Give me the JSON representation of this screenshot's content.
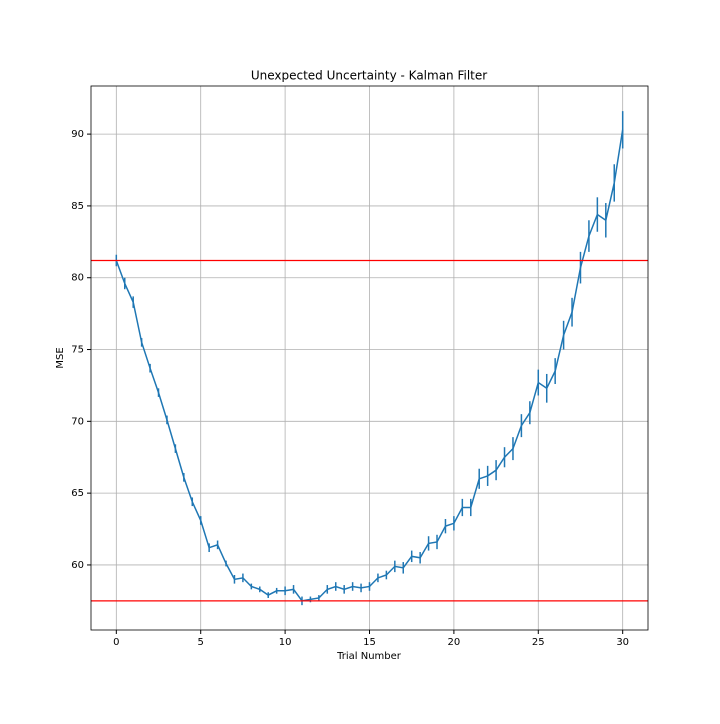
{
  "chart_data": {
    "type": "errorbar-line",
    "title": "Unexpected Uncertainty - Kalman Filter",
    "xlabel": "Trial Number",
    "ylabel": "MSE",
    "series": [
      {
        "color": "#1f77b4",
        "x": [
          0,
          0.5,
          1,
          1.5,
          2,
          2.5,
          3,
          3.5,
          4,
          4.5,
          5,
          5.5,
          6,
          6.5,
          7,
          7.5,
          8,
          8.5,
          9,
          9.5,
          10,
          10.5,
          11,
          11.5,
          12,
          12.5,
          13,
          13.5,
          14,
          14.5,
          15,
          15.5,
          16,
          16.5,
          17,
          17.5,
          18,
          18.5,
          19,
          19.5,
          20,
          20.5,
          21,
          21.5,
          22,
          22.5,
          23,
          23.5,
          24,
          24.5,
          25,
          25.5,
          26,
          26.5,
          27,
          27.5,
          28,
          28.5,
          29,
          29.5,
          30
        ],
        "values": [
          81.2,
          79.6,
          78.3,
          75.5,
          73.7,
          72.0,
          70.1,
          68.1,
          66.1,
          64.4,
          63.1,
          61.2,
          61.4,
          60.1,
          59.0,
          59.1,
          58.5,
          58.3,
          57.9,
          58.2,
          58.2,
          58.3,
          57.5,
          57.6,
          57.7,
          58.3,
          58.5,
          58.3,
          58.5,
          58.4,
          58.5,
          59.1,
          59.3,
          59.9,
          59.8,
          60.6,
          60.5,
          61.5,
          61.6,
          62.7,
          62.9,
          64.0,
          64.0,
          66.0,
          66.2,
          66.6,
          67.5,
          68.1,
          69.7,
          70.6,
          72.7,
          72.3,
          73.5,
          76.0,
          77.6,
          80.7,
          82.9,
          84.4,
          84.0,
          86.6,
          90.3
        ],
        "errors": [
          0.4,
          0.4,
          0.4,
          0.3,
          0.3,
          0.3,
          0.3,
          0.3,
          0.3,
          0.3,
          0.3,
          0.3,
          0.3,
          0.2,
          0.3,
          0.3,
          0.2,
          0.2,
          0.2,
          0.2,
          0.3,
          0.3,
          0.3,
          0.2,
          0.2,
          0.3,
          0.3,
          0.3,
          0.3,
          0.3,
          0.3,
          0.3,
          0.3,
          0.4,
          0.4,
          0.4,
          0.4,
          0.5,
          0.5,
          0.5,
          0.5,
          0.6,
          0.6,
          0.7,
          0.7,
          0.7,
          0.7,
          0.8,
          0.8,
          0.8,
          0.9,
          1.0,
          0.9,
          1.0,
          1.0,
          1.1,
          1.1,
          1.2,
          1.2,
          1.3,
          1.3
        ]
      }
    ],
    "hlines": [
      {
        "y": 81.2,
        "color": "#ff0000"
      },
      {
        "y": 57.5,
        "color": "#ff0000"
      }
    ],
    "xlim": [
      -1.5,
      31.5
    ],
    "ylim": [
      55.47,
      93.35
    ],
    "xticks": [
      0,
      5,
      10,
      15,
      20,
      25,
      30
    ],
    "yticks": [
      60,
      65,
      70,
      75,
      80,
      85,
      90
    ],
    "grid": true
  }
}
